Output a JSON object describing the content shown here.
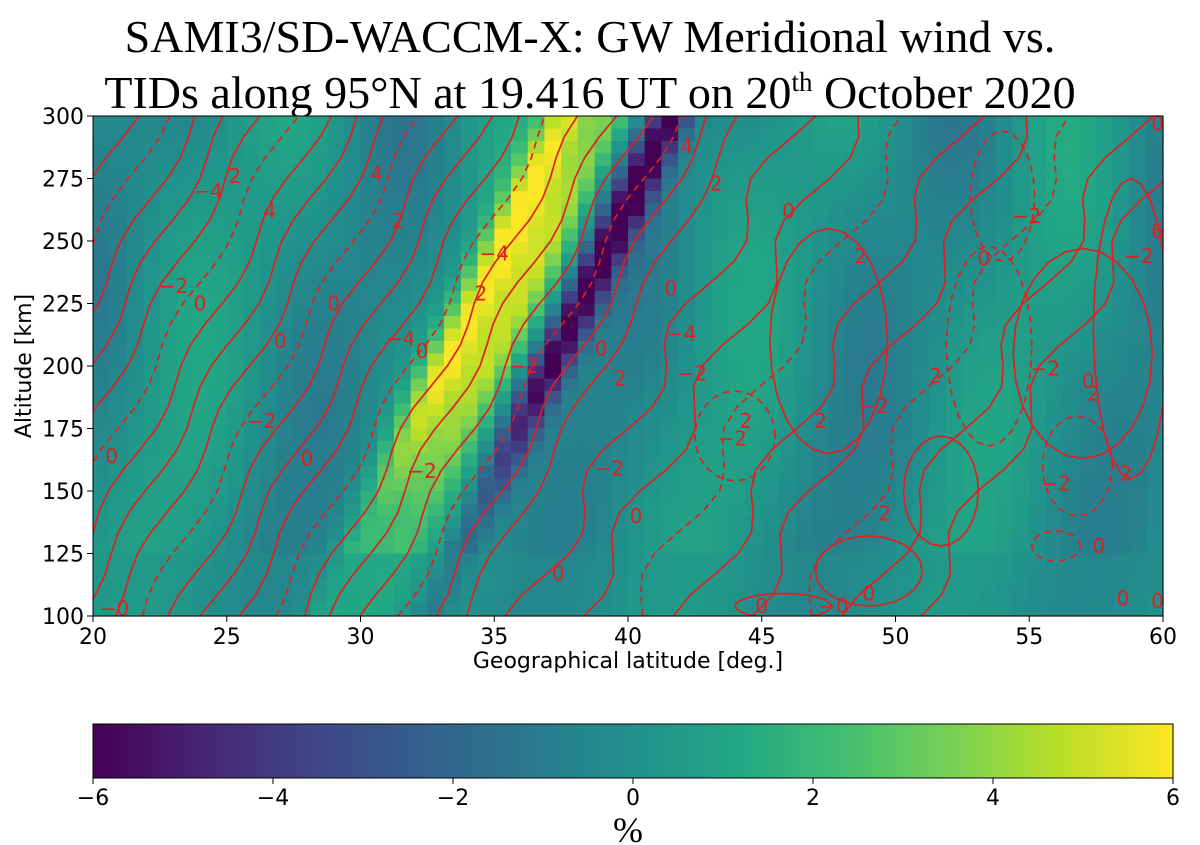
{
  "chart_data": {
    "type": "heatmap",
    "title_line1": "SAMI3/SD-WACCM-X: GW Meridional wind vs.",
    "title_line2_pre": "TIDs along 95°N at 19.416 UT on 20",
    "title_line2_sup": "th",
    "title_line2_post": " October 2020",
    "xlabel": "Geographical latitude [deg.]",
    "ylabel": "Altitude [km]",
    "xlim": [
      20,
      60
    ],
    "ylim": [
      100,
      300
    ],
    "xticks": [
      "20",
      "25",
      "30",
      "35",
      "40",
      "45",
      "50",
      "55",
      "60"
    ],
    "yticks": [
      "100",
      "125",
      "150",
      "175",
      "200",
      "225",
      "250",
      "275",
      "300"
    ],
    "colormap": "viridis",
    "color_range": [
      -6,
      6
    ],
    "colorbar_ticks": [
      "−6",
      "−4",
      "−2",
      "0",
      "2",
      "4",
      "6"
    ],
    "colorbar_label": "%",
    "contour_color": "#e02020",
    "contour_labels": [
      {
        "text": "−4",
        "lat": 24.3,
        "alt": 270
      },
      {
        "text": "2",
        "lat": 25.3,
        "alt": 276
      },
      {
        "text": "4",
        "lat": 26.6,
        "alt": 262
      },
      {
        "text": "4",
        "lat": 30.6,
        "alt": 277
      },
      {
        "text": "2",
        "lat": 31.4,
        "alt": 258
      },
      {
        "text": "−4",
        "lat": 35.0,
        "alt": 245
      },
      {
        "text": "2",
        "lat": 34.5,
        "alt": 229
      },
      {
        "text": "−2",
        "lat": 23.0,
        "alt": 232
      },
      {
        "text": "0",
        "lat": 24.0,
        "alt": 225
      },
      {
        "text": "0",
        "lat": 29.0,
        "alt": 225
      },
      {
        "text": "0",
        "lat": 27.0,
        "alt": 210
      },
      {
        "text": "−4",
        "lat": 31.5,
        "alt": 211
      },
      {
        "text": "0",
        "lat": 32.3,
        "alt": 206
      },
      {
        "text": "−2",
        "lat": 36.1,
        "alt": 200
      },
      {
        "text": "−2",
        "lat": 26.3,
        "alt": 178
      },
      {
        "text": "0",
        "lat": 20.7,
        "alt": 164
      },
      {
        "text": "0",
        "lat": 28.0,
        "alt": 163
      },
      {
        "text": "−2",
        "lat": 32.3,
        "alt": 158
      },
      {
        "text": "4",
        "lat": 42.2,
        "alt": 288
      },
      {
        "text": "2",
        "lat": 43.3,
        "alt": 273
      },
      {
        "text": "0",
        "lat": 46.0,
        "alt": 262
      },
      {
        "text": "0",
        "lat": 41.6,
        "alt": 231
      },
      {
        "text": "−4",
        "lat": 42.0,
        "alt": 213
      },
      {
        "text": "0",
        "lat": 39.0,
        "alt": 207
      },
      {
        "text": "2",
        "lat": 39.7,
        "alt": 195
      },
      {
        "text": "−2",
        "lat": 42.4,
        "alt": 197
      },
      {
        "text": "−2",
        "lat": 39.3,
        "alt": 159
      },
      {
        "text": "2",
        "lat": 44.4,
        "alt": 178
      },
      {
        "text": "−2",
        "lat": 43.9,
        "alt": 171
      },
      {
        "text": "2",
        "lat": 48.7,
        "alt": 244
      },
      {
        "text": "0",
        "lat": 53.3,
        "alt": 243
      },
      {
        "text": "−2",
        "lat": 54.9,
        "alt": 260
      },
      {
        "text": "−2",
        "lat": 49.2,
        "alt": 184
      },
      {
        "text": "2",
        "lat": 47.2,
        "alt": 178
      },
      {
        "text": "2",
        "lat": 51.5,
        "alt": 196
      },
      {
        "text": "2",
        "lat": 49.6,
        "alt": 141
      },
      {
        "text": "−2",
        "lat": 55.6,
        "alt": 199
      },
      {
        "text": "0",
        "lat": 57.2,
        "alt": 194
      },
      {
        "text": "2",
        "lat": 57.4,
        "alt": 189
      },
      {
        "text": "−2",
        "lat": 59.1,
        "alt": 244
      },
      {
        "text": "6",
        "lat": 59.8,
        "alt": 254
      },
      {
        "text": "0",
        "lat": 59.8,
        "alt": 297
      },
      {
        "text": "−2",
        "lat": 56.0,
        "alt": 153
      },
      {
        "text": "2",
        "lat": 58.6,
        "alt": 157
      },
      {
        "text": "0",
        "lat": 57.6,
        "alt": 128
      },
      {
        "text": "0",
        "lat": 49.0,
        "alt": 109
      },
      {
        "text": "0",
        "lat": 45.0,
        "alt": 104
      },
      {
        "text": "−0",
        "lat": 47.7,
        "alt": 104
      },
      {
        "text": "0",
        "lat": 37.4,
        "alt": 117
      },
      {
        "text": "0",
        "lat": 40.3,
        "alt": 140
      },
      {
        "text": "0",
        "lat": 58.5,
        "alt": 107
      },
      {
        "text": "0",
        "lat": 59.8,
        "alt": 106
      },
      {
        "text": "−0",
        "lat": 20.8,
        "alt": 103
      }
    ]
  }
}
